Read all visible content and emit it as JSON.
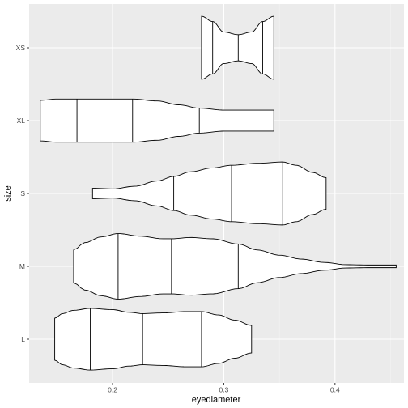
{
  "chart_data": {
    "type": "violin",
    "orientation": "horizontal",
    "xlabel": "eyediameter",
    "ylabel": "size",
    "xlim": [
      0.125,
      0.462
    ],
    "x_ticks": [
      0.2,
      0.3,
      0.4
    ],
    "x_tick_labels": [
      "0.2",
      "0.3",
      "0.4"
    ],
    "categories": [
      "L",
      "M",
      "S",
      "XL",
      "XS"
    ],
    "draw_quantiles": [
      0.25,
      0.5,
      0.75
    ],
    "violin_fill": "#ffffff",
    "violin_stroke": "#000000",
    "panel_background": "#ebebeb",
    "grid": true,
    "series": [
      {
        "category": "L",
        "min": 0.148,
        "max": 0.325,
        "quantiles": [
          0.18,
          0.227,
          0.28
        ],
        "profile": [
          [
            0.148,
            0.64
          ],
          [
            0.155,
            0.78
          ],
          [
            0.165,
            0.88
          ],
          [
            0.18,
            0.94
          ],
          [
            0.2,
            0.9
          ],
          [
            0.215,
            0.82
          ],
          [
            0.227,
            0.78
          ],
          [
            0.245,
            0.8
          ],
          [
            0.265,
            0.84
          ],
          [
            0.28,
            0.84
          ],
          [
            0.295,
            0.74
          ],
          [
            0.31,
            0.58
          ],
          [
            0.325,
            0.42
          ]
        ]
      },
      {
        "category": "M",
        "min": 0.165,
        "max": 0.455,
        "quantiles": [
          0.205,
          0.253,
          0.313
        ],
        "profile": [
          [
            0.165,
            0.5
          ],
          [
            0.175,
            0.72
          ],
          [
            0.19,
            0.9
          ],
          [
            0.205,
            1.0
          ],
          [
            0.225,
            0.92
          ],
          [
            0.245,
            0.84
          ],
          [
            0.253,
            0.84
          ],
          [
            0.27,
            0.88
          ],
          [
            0.29,
            0.84
          ],
          [
            0.313,
            0.68
          ],
          [
            0.33,
            0.5
          ],
          [
            0.35,
            0.34
          ],
          [
            0.37,
            0.22
          ],
          [
            0.39,
            0.12
          ],
          [
            0.41,
            0.05
          ],
          [
            0.43,
            0.04
          ],
          [
            0.455,
            0.04
          ]
        ]
      },
      {
        "category": "S",
        "min": 0.182,
        "max": 0.392,
        "quantiles": [
          0.255,
          0.307,
          0.353
        ],
        "profile": [
          [
            0.182,
            0.16
          ],
          [
            0.2,
            0.14
          ],
          [
            0.22,
            0.22
          ],
          [
            0.24,
            0.38
          ],
          [
            0.255,
            0.52
          ],
          [
            0.27,
            0.66
          ],
          [
            0.29,
            0.78
          ],
          [
            0.307,
            0.86
          ],
          [
            0.33,
            0.92
          ],
          [
            0.353,
            0.96
          ],
          [
            0.365,
            0.86
          ],
          [
            0.38,
            0.64
          ],
          [
            0.392,
            0.48
          ]
        ]
      },
      {
        "category": "XL",
        "min": 0.135,
        "max": 0.345,
        "quantiles": [
          0.168,
          0.218,
          0.278
        ],
        "profile": [
          [
            0.135,
            0.62
          ],
          [
            0.15,
            0.66
          ],
          [
            0.168,
            0.66
          ],
          [
            0.19,
            0.66
          ],
          [
            0.218,
            0.66
          ],
          [
            0.24,
            0.6
          ],
          [
            0.26,
            0.48
          ],
          [
            0.278,
            0.38
          ],
          [
            0.3,
            0.32
          ],
          [
            0.325,
            0.32
          ],
          [
            0.345,
            0.32
          ]
        ]
      },
      {
        "category": "XS",
        "min": 0.28,
        "max": 0.345,
        "quantiles": [
          0.29,
          0.313,
          0.335
        ],
        "profile": [
          [
            0.28,
            0.96
          ],
          [
            0.29,
            0.8
          ],
          [
            0.3,
            0.48
          ],
          [
            0.313,
            0.4
          ],
          [
            0.325,
            0.48
          ],
          [
            0.335,
            0.8
          ],
          [
            0.345,
            0.96
          ]
        ]
      }
    ]
  }
}
